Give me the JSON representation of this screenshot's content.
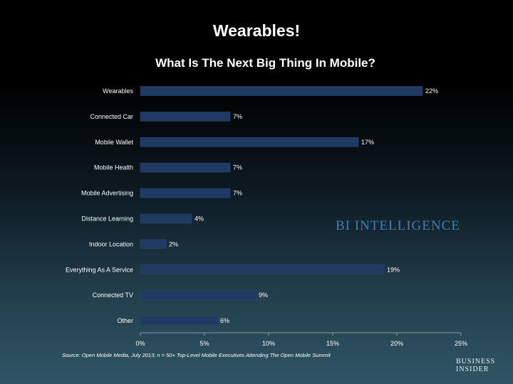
{
  "slide_title": "Wearables!",
  "watermark": "BI INTELLIGENCE",
  "source": "Source: Open Mobile Media, July 2013; n = 50+ Top-Level Mobile Executives Attending The Open Mobile Summit",
  "brand": {
    "line1": "BUSINESS",
    "line2": "INSIDER"
  },
  "colors": {
    "bar": "#1f3a63",
    "bar_edge": "#2c4a78",
    "axis": "#8a99a6",
    "watermark": "#3f7fb6"
  },
  "chart_data": {
    "type": "bar",
    "orientation": "horizontal",
    "title": "What Is The Next Big Thing In Mobile?",
    "categories": [
      "Wearables",
      "Connected Car",
      "Mobile Wallet",
      "Mobile Health",
      "Mobile Advertising",
      "Distance Learning",
      "Indoor Location",
      "Everything As A Service",
      "Connected TV",
      "Other"
    ],
    "values": [
      22,
      7,
      17,
      7,
      7,
      4,
      2,
      19,
      9,
      6
    ],
    "data_labels": [
      "22%",
      "7%",
      "17%",
      "7%",
      "7%",
      "4%",
      "2%",
      "19%",
      "9%",
      "6%"
    ],
    "xlim": [
      0,
      25
    ],
    "xticks": [
      0,
      5,
      10,
      15,
      20,
      25
    ],
    "xtick_labels": [
      "0%",
      "5%",
      "10%",
      "15%",
      "20%",
      "25%"
    ],
    "xlabel": "",
    "ylabel": "",
    "grid": false,
    "legend": "none"
  }
}
